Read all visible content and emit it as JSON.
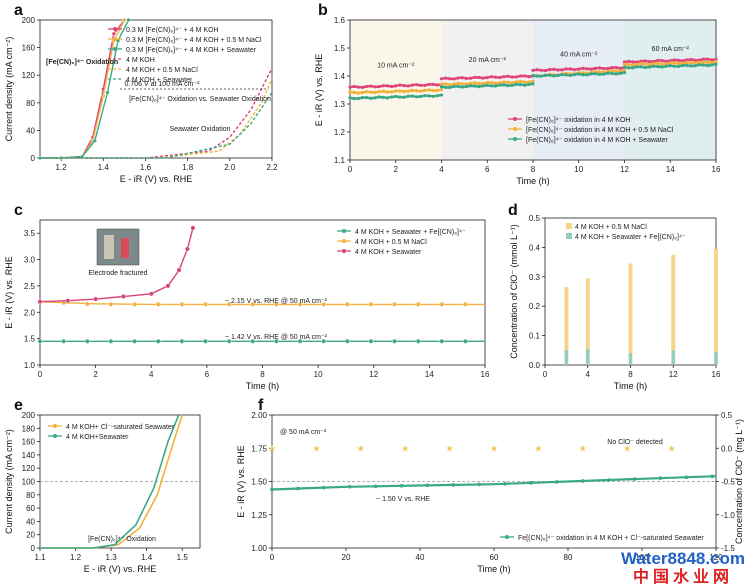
{
  "chart_data": [
    {
      "panel": "a",
      "type": "line",
      "xlabel": "E - iR (V) vs. RHE",
      "ylabel": "Current density (mA cm⁻²)",
      "xlim": [
        1.1,
        2.2
      ],
      "ylim": [
        0,
        200
      ],
      "xticks": [
        "1.2",
        "1.4",
        "1.6",
        "1.8",
        "2.0",
        "2.2"
      ],
      "yticks": [
        "0",
        "40",
        "80",
        "120",
        "160",
        "200"
      ],
      "legend_position": "top-right",
      "series": [
        {
          "name": "0.3 M [Fe(CN)₆]⁴⁻ + 4 M KOH",
          "color": "#d6447a",
          "style": "solid-marker",
          "x": [
            1.1,
            1.2,
            1.3,
            1.35,
            1.4,
            1.45,
            1.5
          ],
          "y": [
            0,
            0,
            2,
            30,
            100,
            180,
            200
          ]
        },
        {
          "name": "0.3 M [Fe(CN)₆]⁴⁻ + 4 M KOH + 0.5 M NaCl",
          "color": "#f2b13c",
          "style": "solid-marker",
          "x": [
            1.1,
            1.2,
            1.3,
            1.35,
            1.4,
            1.45,
            1.5
          ],
          "y": [
            0,
            0,
            2,
            25,
            90,
            170,
            200
          ]
        },
        {
          "name": "0.3 M [Fe(CN)₆]⁴⁻ + 4 M KOH + Seawater",
          "color": "#3aa888",
          "style": "solid-marker",
          "x": [
            1.1,
            1.2,
            1.3,
            1.36,
            1.42,
            1.47,
            1.52
          ],
          "y": [
            0,
            0,
            2,
            25,
            95,
            170,
            200
          ]
        },
        {
          "name": "4 M KOH",
          "color": "#d6447a",
          "style": "dashed",
          "x": [
            1.1,
            1.6,
            1.9,
            2.0,
            2.1,
            2.2
          ],
          "y": [
            0,
            0,
            10,
            30,
            70,
            130
          ]
        },
        {
          "name": "4 M KOH + 0.5 M NaCl",
          "color": "#f2b13c",
          "style": "dashed",
          "x": [
            1.1,
            1.65,
            1.95,
            2.05,
            2.15,
            2.2
          ],
          "y": [
            0,
            0,
            10,
            35,
            80,
            115
          ]
        },
        {
          "name": "4 M KOH + Seawater",
          "color": "#3aa888",
          "style": "dashed",
          "x": [
            1.1,
            1.7,
            2.0,
            2.1,
            2.2
          ],
          "y": [
            0,
            0,
            20,
            50,
            95
          ]
        }
      ],
      "annotations": [
        "[Fe(CN)₆]⁴⁻ Oxidation",
        "0.706 V at 100 mA cm⁻²",
        "[Fe(CN)₆]⁴⁻ Oxidation vs. Seawater Oxidation",
        "Seawater Oxidation"
      ]
    },
    {
      "panel": "b",
      "type": "line",
      "xlabel": "Time (h)",
      "ylabel": "E - iR (V) vs. RHE",
      "xlim": [
        0,
        16
      ],
      "ylim": [
        1.1,
        1.6
      ],
      "xticks": [
        "0",
        "2",
        "4",
        "6",
        "8",
        "10",
        "12",
        "14",
        "16"
      ],
      "yticks": [
        "1.1",
        "1.2",
        "1.3",
        "1.4",
        "1.5",
        "1.6"
      ],
      "regions": [
        {
          "label": "10 mA cm⁻²",
          "from": 0,
          "to": 4,
          "color": "#fbf6ea"
        },
        {
          "label": "20 mA cm⁻²",
          "from": 4,
          "to": 8,
          "color": "#f1f1f1"
        },
        {
          "label": "40 mA cm⁻²",
          "from": 8,
          "to": 12,
          "color": "#e6edf5"
        },
        {
          "label": "60 mA cm⁻²",
          "from": 12,
          "to": 16,
          "color": "#e1eef0"
        }
      ],
      "legend_position": "bottom-right",
      "series": [
        {
          "name": "[Fe(CN)₆]⁴⁻ oxidation in 4 M KOH",
          "color": "#e0457b",
          "x": [
            0,
            4,
            4,
            8,
            8,
            12,
            12,
            16
          ],
          "y": [
            1.36,
            1.37,
            1.39,
            1.4,
            1.42,
            1.43,
            1.45,
            1.46
          ]
        },
        {
          "name": "[Fe(CN)₆]⁴⁻ oxidation in 4 M KOH + 0.5 M NaCl",
          "color": "#f2b13c",
          "x": [
            0,
            4,
            4,
            8,
            8,
            12,
            12,
            16
          ],
          "y": [
            1.34,
            1.35,
            1.37,
            1.38,
            1.4,
            1.42,
            1.44,
            1.45
          ]
        },
        {
          "name": "[Fe(CN)₆]⁴⁻ oxidation in 4 M KOH + Seawater",
          "color": "#3aa888",
          "x": [
            0,
            4,
            4,
            8,
            8,
            12,
            12,
            16
          ],
          "y": [
            1.32,
            1.33,
            1.36,
            1.37,
            1.4,
            1.41,
            1.43,
            1.44
          ]
        }
      ]
    },
    {
      "panel": "c",
      "type": "line",
      "xlabel": "Time (h)",
      "ylabel": "E - iR (V) vs. RHE",
      "xlim": [
        0,
        16
      ],
      "ylim": [
        1.0,
        3.75
      ],
      "xticks": [
        "0",
        "2",
        "4",
        "6",
        "8",
        "10",
        "12",
        "14",
        "16"
      ],
      "yticks": [
        "1.0",
        "1.5",
        "2.0",
        "2.5",
        "3.0",
        "3.5"
      ],
      "legend_position": "top-right",
      "series": [
        {
          "name": "4 M KOH + Seawater + Fe[(CN)₆]⁴⁻",
          "color": "#3aa888",
          "x": [
            0,
            2,
            4,
            6,
            8,
            10,
            12,
            14,
            16
          ],
          "y": [
            1.45,
            1.45,
            1.45,
            1.45,
            1.45,
            1.45,
            1.45,
            1.45,
            1.45
          ]
        },
        {
          "name": "4 M KOH + 0.5 M NaCl",
          "color": "#f2b13c",
          "x": [
            0,
            1,
            2,
            4,
            6,
            8,
            10,
            12,
            14,
            16
          ],
          "y": [
            2.2,
            2.18,
            2.16,
            2.15,
            2.15,
            2.15,
            2.15,
            2.15,
            2.15,
            2.15
          ]
        },
        {
          "name": "4 M KOH + Seawater",
          "color": "#d6447a",
          "x": [
            0,
            1,
            2,
            3,
            4,
            4.6,
            5.0,
            5.3,
            5.5
          ],
          "y": [
            2.2,
            2.22,
            2.25,
            2.3,
            2.35,
            2.5,
            2.8,
            3.2,
            3.6
          ]
        }
      ],
      "annotations": [
        "Electrode fractured",
        "~ 2.15 V vs. RHE @ 50 mA cm⁻²",
        "~ 1.42 V vs. RHE @ 50 mA cm⁻²"
      ]
    },
    {
      "panel": "d",
      "type": "bar",
      "xlabel": "Time (h)",
      "ylabel": "Concentration of ClO⁻ (mmol L⁻¹)",
      "xlim": [
        0,
        16
      ],
      "ylim": [
        0,
        0.5
      ],
      "xticks": [
        "0",
        "4",
        "8",
        "12",
        "16"
      ],
      "yticks": [
        "0.0",
        "0.1",
        "0.2",
        "0.3",
        "0.4",
        "0.5"
      ],
      "legend_position": "top-left",
      "categories": [
        2,
        4,
        8,
        12,
        16
      ],
      "series": [
        {
          "name": "4 M KOH + 0.5 M NaCl",
          "color": "#f6d48a",
          "values": [
            0.265,
            0.295,
            0.345,
            0.375,
            0.395
          ]
        },
        {
          "name": "4 M KOH + Seawater + Fe[(CN)₆]⁴⁻",
          "color": "#8fcfc2",
          "values": [
            0.05,
            0.055,
            0.04,
            0.05,
            0.045
          ]
        }
      ]
    },
    {
      "panel": "e",
      "type": "line",
      "xlabel": "E - iR (V) vs. RHE",
      "ylabel": "Current density (mA cm⁻²)",
      "xlim": [
        1.1,
        1.55
      ],
      "ylim": [
        0,
        200
      ],
      "xticks": [
        "1.1",
        "1.2",
        "1.3",
        "1.4",
        "1.5"
      ],
      "yticks": [
        "0",
        "20",
        "40",
        "60",
        "80",
        "100",
        "120",
        "140",
        "160",
        "180",
        "200"
      ],
      "legend_position": "top-left",
      "series": [
        {
          "name": "4 M KOH+ Cl⁻-saturated Seawater",
          "color": "#f2b13c",
          "x": [
            1.1,
            1.25,
            1.32,
            1.38,
            1.43,
            1.47,
            1.5
          ],
          "y": [
            0,
            0,
            5,
            30,
            80,
            150,
            200
          ]
        },
        {
          "name": "4 M KOH+Seawater",
          "color": "#3aa888",
          "x": [
            1.1,
            1.25,
            1.31,
            1.37,
            1.42,
            1.46,
            1.49
          ],
          "y": [
            0,
            0,
            5,
            35,
            90,
            160,
            200
          ]
        }
      ],
      "annotations": [
        "[Fe(CN)₆]⁴⁻ Oxidation"
      ]
    },
    {
      "panel": "f",
      "type": "line",
      "xlabel": "Time (h)",
      "ylabel": "E - iR (V) vs. RHE",
      "y2label": "Concentration of ClO⁻ (mg L⁻¹)",
      "xlim": [
        0,
        120
      ],
      "ylim": [
        1.0,
        2.0
      ],
      "y2lim": [
        -1.5,
        0.5
      ],
      "xticks": [
        "0",
        "20",
        "40",
        "60",
        "80",
        "100",
        "120"
      ],
      "yticks": [
        "1.00",
        "1.25",
        "1.50",
        "1.75",
        "2.00"
      ],
      "y2ticks": [
        "-1.5",
        "-1.0",
        "-0.5",
        "0.0",
        "0.5"
      ],
      "legend_position": "bottom-right",
      "series": [
        {
          "name": "Fe[(CN)₆]⁴⁻ oxidation in 4 M KOH + Cl⁻-saturated Seawater",
          "color": "#3aa888",
          "x": [
            0,
            10,
            20,
            40,
            60,
            80,
            100,
            120
          ],
          "y": [
            1.44,
            1.45,
            1.46,
            1.47,
            1.48,
            1.5,
            1.52,
            1.54
          ]
        },
        {
          "name": "ClO⁻ concentration",
          "color": "#f2c45a",
          "axis": "y2",
          "x": [
            0,
            12,
            24,
            36,
            48,
            60,
            72,
            84,
            96,
            108
          ],
          "y": [
            0,
            0,
            0,
            0,
            0,
            0,
            0,
            0,
            0,
            0
          ]
        }
      ],
      "annotations": [
        "@ 50 mA cm⁻²",
        "No ClO⁻ detected",
        "~ 1.50 V vs. RHE"
      ]
    }
  ],
  "watermark": {
    "brand": "Water8848.com",
    "chinese": "中国水业网"
  }
}
